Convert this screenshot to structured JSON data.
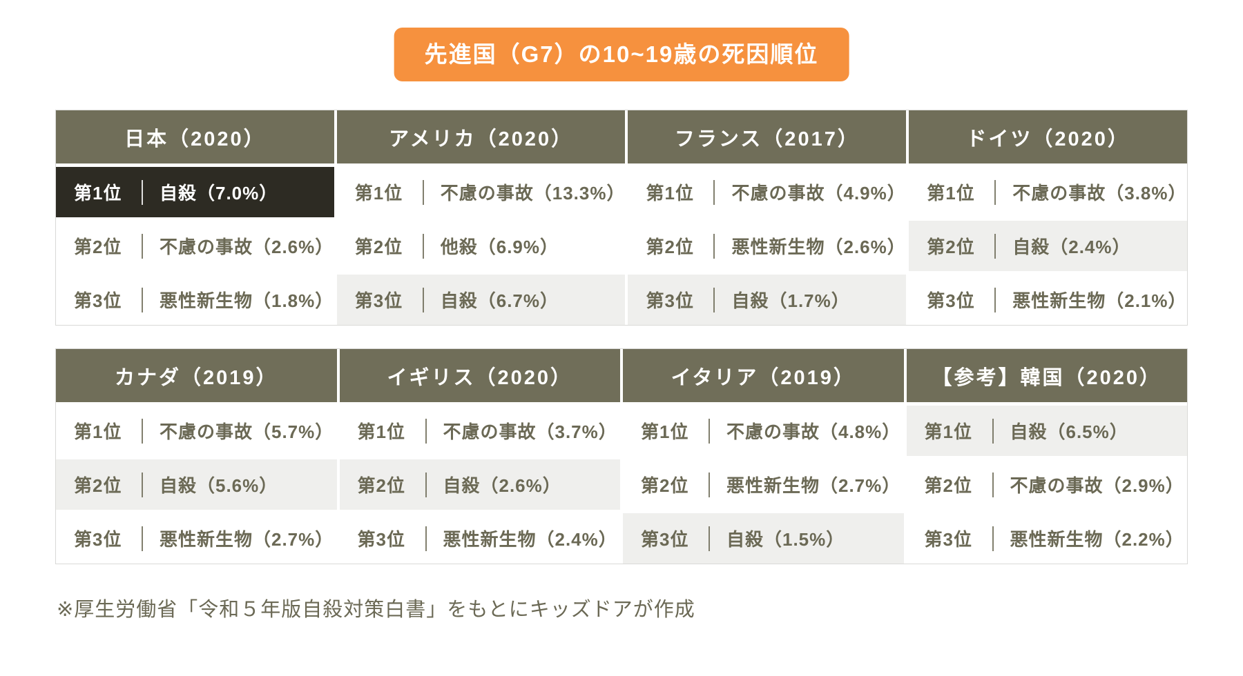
{
  "title": "先進国（G7）の10~19歳の死因順位",
  "footnote": "※厚生労働省「令和５年版自殺対策白書」をもとにキッズドアが作成",
  "colors": {
    "accent_orange": "#F6913E",
    "header_olive": "#706E59",
    "highlight_dark": "#2D2B23",
    "highlight_gray": "#EFEFED",
    "cell_text": "#6B6955",
    "table_border": "#D9D9D7"
  },
  "tables": [
    {
      "columns": [
        {
          "header": "日本（2020）",
          "rows": [
            {
              "rank": "第1位",
              "cause": "自殺（7.0%）",
              "highlight": "dark"
            },
            {
              "rank": "第2位",
              "cause": "不慮の事故（2.6%）",
              "highlight": "none"
            },
            {
              "rank": "第3位",
              "cause": "悪性新生物（1.8%）",
              "highlight": "none"
            }
          ]
        },
        {
          "header": "アメリカ（2020）",
          "rows": [
            {
              "rank": "第1位",
              "cause": "不慮の事故（13.3%）",
              "highlight": "none"
            },
            {
              "rank": "第2位",
              "cause": "他殺（6.9%）",
              "highlight": "none"
            },
            {
              "rank": "第3位",
              "cause": "自殺（6.7%）",
              "highlight": "gray"
            }
          ]
        },
        {
          "header": "フランス（2017）",
          "rows": [
            {
              "rank": "第1位",
              "cause": "不慮の事故（4.9%）",
              "highlight": "none"
            },
            {
              "rank": "第2位",
              "cause": "悪性新生物（2.6%）",
              "highlight": "none"
            },
            {
              "rank": "第3位",
              "cause": "自殺（1.7%）",
              "highlight": "gray"
            }
          ]
        },
        {
          "header": "ドイツ（2020）",
          "rows": [
            {
              "rank": "第1位",
              "cause": "不慮の事故（3.8%）",
              "highlight": "none"
            },
            {
              "rank": "第2位",
              "cause": "自殺（2.4%）",
              "highlight": "gray"
            },
            {
              "rank": "第3位",
              "cause": "悪性新生物（2.1%）",
              "highlight": "none"
            }
          ]
        }
      ]
    },
    {
      "columns": [
        {
          "header": "カナダ（2019）",
          "rows": [
            {
              "rank": "第1位",
              "cause": "不慮の事故（5.7%）",
              "highlight": "none"
            },
            {
              "rank": "第2位",
              "cause": "自殺（5.6%）",
              "highlight": "gray"
            },
            {
              "rank": "第3位",
              "cause": "悪性新生物（2.7%）",
              "highlight": "none"
            }
          ]
        },
        {
          "header": "イギリス（2020）",
          "rows": [
            {
              "rank": "第1位",
              "cause": "不慮の事故（3.7%）",
              "highlight": "none"
            },
            {
              "rank": "第2位",
              "cause": "自殺（2.6%）",
              "highlight": "gray"
            },
            {
              "rank": "第3位",
              "cause": "悪性新生物（2.4%）",
              "highlight": "none"
            }
          ]
        },
        {
          "header": "イタリア（2019）",
          "rows": [
            {
              "rank": "第1位",
              "cause": "不慮の事故（4.8%）",
              "highlight": "none"
            },
            {
              "rank": "第2位",
              "cause": "悪性新生物（2.7%）",
              "highlight": "none"
            },
            {
              "rank": "第3位",
              "cause": "自殺（1.5%）",
              "highlight": "gray"
            }
          ]
        },
        {
          "header": "【参考】韓国（2020）",
          "rows": [
            {
              "rank": "第1位",
              "cause": "自殺（6.5%）",
              "highlight": "gray"
            },
            {
              "rank": "第2位",
              "cause": "不慮の事故（2.9%）",
              "highlight": "none"
            },
            {
              "rank": "第3位",
              "cause": "悪性新生物（2.2%）",
              "highlight": "none"
            }
          ]
        }
      ]
    }
  ]
}
